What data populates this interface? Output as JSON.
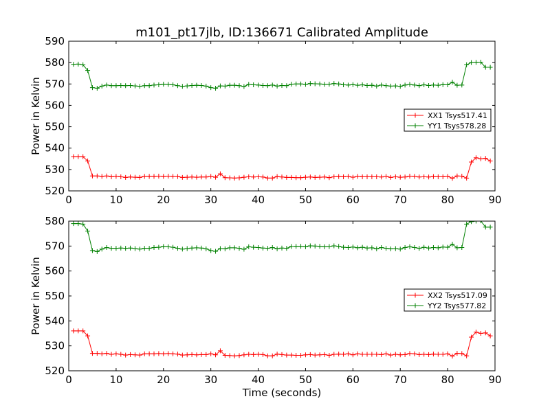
{
  "figure": {
    "title": "m101_pt17jlb, ID:136671 Calibrated Amplitude",
    "xlabel": "Time (seconds)"
  },
  "chart_data": [
    {
      "type": "line",
      "ylabel": "Power in Kelvin",
      "xlim": [
        0,
        90
      ],
      "ylim": [
        520,
        590
      ],
      "xticks": [
        0,
        10,
        20,
        30,
        40,
        50,
        60,
        70,
        80,
        90
      ],
      "yticks": [
        520,
        530,
        540,
        550,
        560,
        570,
        580,
        590
      ],
      "legend_position": "center-right",
      "series": [
        {
          "name": "XX1 Tsys517.41",
          "color": "#ff0000",
          "x": [
            1,
            2,
            3,
            4,
            5,
            6,
            7,
            8,
            9,
            10,
            11,
            12,
            13,
            14,
            15,
            16,
            17,
            18,
            19,
            20,
            21,
            22,
            23,
            24,
            25,
            26,
            27,
            28,
            29,
            30,
            31,
            32,
            33,
            34,
            35,
            36,
            37,
            38,
            39,
            40,
            41,
            42,
            43,
            44,
            45,
            46,
            47,
            48,
            49,
            50,
            51,
            52,
            53,
            54,
            55,
            56,
            57,
            58,
            59,
            60,
            61,
            62,
            63,
            64,
            65,
            66,
            67,
            68,
            69,
            70,
            71,
            72,
            73,
            74,
            75,
            76,
            77,
            78,
            79,
            80,
            81,
            82,
            83,
            84,
            85,
            86,
            87,
            88,
            89
          ],
          "y": [
            536,
            536,
            536,
            534,
            527,
            527,
            526.8,
            527,
            526.6,
            526.8,
            526.6,
            526.3,
            526.5,
            526.4,
            526.3,
            526.8,
            526.8,
            526.8,
            526.9,
            526.8,
            526.9,
            526.8,
            526.7,
            526.3,
            526.4,
            526.5,
            526.4,
            526.5,
            526.5,
            526.8,
            526.4,
            528,
            526.2,
            526.1,
            526,
            526.1,
            526.4,
            526.6,
            526.5,
            526.6,
            526.5,
            526,
            526,
            526.7,
            526.5,
            526.3,
            526.3,
            526.2,
            526.2,
            526.4,
            526.5,
            526.3,
            526.4,
            526.5,
            526.2,
            526.6,
            526.7,
            526.6,
            526.8,
            526.4,
            526.8,
            526.6,
            526.6,
            526.6,
            526.6,
            526.5,
            526.8,
            526.3,
            526.6,
            526.4,
            526.5,
            526.9,
            526.8,
            526.5,
            526.6,
            526.5,
            526.7,
            526.6,
            526.6,
            526.8,
            525.9,
            527,
            526.9,
            526,
            533.5,
            535.5,
            535,
            535.2,
            534
          ]
        },
        {
          "name": "YY1 Tsys578.28",
          "color": "#008000",
          "x": [
            1,
            2,
            3,
            4,
            5,
            6,
            7,
            8,
            9,
            10,
            11,
            12,
            13,
            14,
            15,
            16,
            17,
            18,
            19,
            20,
            21,
            22,
            23,
            24,
            25,
            26,
            27,
            28,
            29,
            30,
            31,
            32,
            33,
            34,
            35,
            36,
            37,
            38,
            39,
            40,
            41,
            42,
            43,
            44,
            45,
            46,
            47,
            48,
            49,
            50,
            51,
            52,
            53,
            54,
            55,
            56,
            57,
            58,
            59,
            60,
            61,
            62,
            63,
            64,
            65,
            66,
            67,
            68,
            69,
            70,
            71,
            72,
            73,
            74,
            75,
            76,
            77,
            78,
            79,
            80,
            81,
            82,
            83,
            84,
            85,
            86,
            87,
            88,
            89
          ],
          "y": [
            579.2,
            579.3,
            579,
            576.3,
            568.3,
            568,
            569,
            569.5,
            569.2,
            569.2,
            569.3,
            569.2,
            569.3,
            569.1,
            568.9,
            569.2,
            569.2,
            569.5,
            569.6,
            569.9,
            569.8,
            569.6,
            569.2,
            568.9,
            569.1,
            569.3,
            569.4,
            569.3,
            569,
            568.3,
            568,
            569.1,
            569,
            569.4,
            569.4,
            569.2,
            568.8,
            569.8,
            569.6,
            569.5,
            569.3,
            569.2,
            569.5,
            569,
            569.3,
            569.2,
            569.9,
            570,
            570,
            569.8,
            570.2,
            570.1,
            570,
            569.8,
            569.9,
            570.2,
            570,
            569.6,
            569.5,
            569.7,
            569.4,
            569.6,
            569.3,
            569.4,
            569,
            569.5,
            569.2,
            569,
            569.1,
            568.9,
            569.5,
            569.8,
            569.5,
            569.2,
            569.6,
            569.3,
            569.5,
            569.4,
            569.7,
            569.6,
            570.8,
            569.4,
            569.5,
            579,
            580,
            580.1,
            580.2,
            577.8,
            577.8
          ]
        }
      ]
    },
    {
      "type": "line",
      "ylabel": "Power in Kelvin",
      "xlim": [
        0,
        90
      ],
      "ylim": [
        520,
        580
      ],
      "xticks": [
        0,
        10,
        20,
        30,
        40,
        50,
        60,
        70,
        80,
        90
      ],
      "yticks": [
        520,
        530,
        540,
        550,
        560,
        570,
        580
      ],
      "legend_position": "center-right",
      "series": [
        {
          "name": "XX2 Tsys517.09",
          "color": "#ff0000",
          "x": [
            1,
            2,
            3,
            4,
            5,
            6,
            7,
            8,
            9,
            10,
            11,
            12,
            13,
            14,
            15,
            16,
            17,
            18,
            19,
            20,
            21,
            22,
            23,
            24,
            25,
            26,
            27,
            28,
            29,
            30,
            31,
            32,
            33,
            34,
            35,
            36,
            37,
            38,
            39,
            40,
            41,
            42,
            43,
            44,
            45,
            46,
            47,
            48,
            49,
            50,
            51,
            52,
            53,
            54,
            55,
            56,
            57,
            58,
            59,
            60,
            61,
            62,
            63,
            64,
            65,
            66,
            67,
            68,
            69,
            70,
            71,
            72,
            73,
            74,
            75,
            76,
            77,
            78,
            79,
            80,
            81,
            82,
            83,
            84,
            85,
            86,
            87,
            88,
            89
          ],
          "y": [
            536,
            536,
            536,
            534,
            527,
            527,
            526.8,
            527,
            526.6,
            526.8,
            526.6,
            526.3,
            526.5,
            526.4,
            526.3,
            526.8,
            526.8,
            526.8,
            526.9,
            526.8,
            526.9,
            526.8,
            526.7,
            526.3,
            526.4,
            526.5,
            526.4,
            526.5,
            526.5,
            526.8,
            526.4,
            528,
            526.2,
            526.1,
            526,
            526.1,
            526.4,
            526.6,
            526.5,
            526.6,
            526.5,
            526,
            526,
            526.7,
            526.5,
            526.3,
            526.3,
            526.2,
            526.2,
            526.4,
            526.5,
            526.3,
            526.4,
            526.5,
            526.2,
            526.6,
            526.7,
            526.6,
            526.8,
            526.4,
            526.8,
            526.6,
            526.6,
            526.6,
            526.6,
            526.5,
            526.8,
            526.3,
            526.6,
            526.4,
            526.5,
            526.9,
            526.8,
            526.5,
            526.6,
            526.5,
            526.7,
            526.6,
            526.6,
            526.8,
            525.9,
            527,
            526.9,
            526,
            533.5,
            535.5,
            535,
            535.2,
            534
          ]
        },
        {
          "name": "YY2 Tsys577.82",
          "color": "#008000",
          "x": [
            1,
            2,
            3,
            4,
            5,
            6,
            7,
            8,
            9,
            10,
            11,
            12,
            13,
            14,
            15,
            16,
            17,
            18,
            19,
            20,
            21,
            22,
            23,
            24,
            25,
            26,
            27,
            28,
            29,
            30,
            31,
            32,
            33,
            34,
            35,
            36,
            37,
            38,
            39,
            40,
            41,
            42,
            43,
            44,
            45,
            46,
            47,
            48,
            49,
            50,
            51,
            52,
            53,
            54,
            55,
            56,
            57,
            58,
            59,
            60,
            61,
            62,
            63,
            64,
            65,
            66,
            67,
            68,
            69,
            70,
            71,
            72,
            73,
            74,
            75,
            76,
            77,
            78,
            79,
            80,
            81,
            82,
            83,
            84,
            85,
            86,
            87,
            88,
            89
          ],
          "y": [
            579,
            579,
            578.8,
            576,
            568.2,
            567.8,
            568.8,
            569.4,
            569.1,
            569.1,
            569.2,
            569.1,
            569.2,
            569,
            568.8,
            569.1,
            569.1,
            569.4,
            569.5,
            569.8,
            569.7,
            569.5,
            569.1,
            568.8,
            569,
            569.2,
            569.3,
            569.2,
            568.9,
            568.2,
            567.9,
            569,
            568.9,
            569.3,
            569.3,
            569.1,
            568.7,
            569.7,
            569.5,
            569.4,
            569.2,
            569.1,
            569.4,
            568.9,
            569.2,
            569.1,
            569.8,
            569.9,
            569.9,
            569.7,
            570.1,
            570,
            569.9,
            569.7,
            569.8,
            570.1,
            569.9,
            569.5,
            569.4,
            569.6,
            569.3,
            569.5,
            569.2,
            569.3,
            568.9,
            569.4,
            569.1,
            568.9,
            569,
            568.8,
            569.4,
            569.7,
            569.4,
            569.1,
            569.5,
            569.2,
            569.4,
            569.3,
            569.6,
            569.5,
            570.7,
            569.3,
            569.4,
            578.8,
            579.8,
            580,
            580.1,
            577.6,
            577.6
          ]
        }
      ]
    }
  ]
}
